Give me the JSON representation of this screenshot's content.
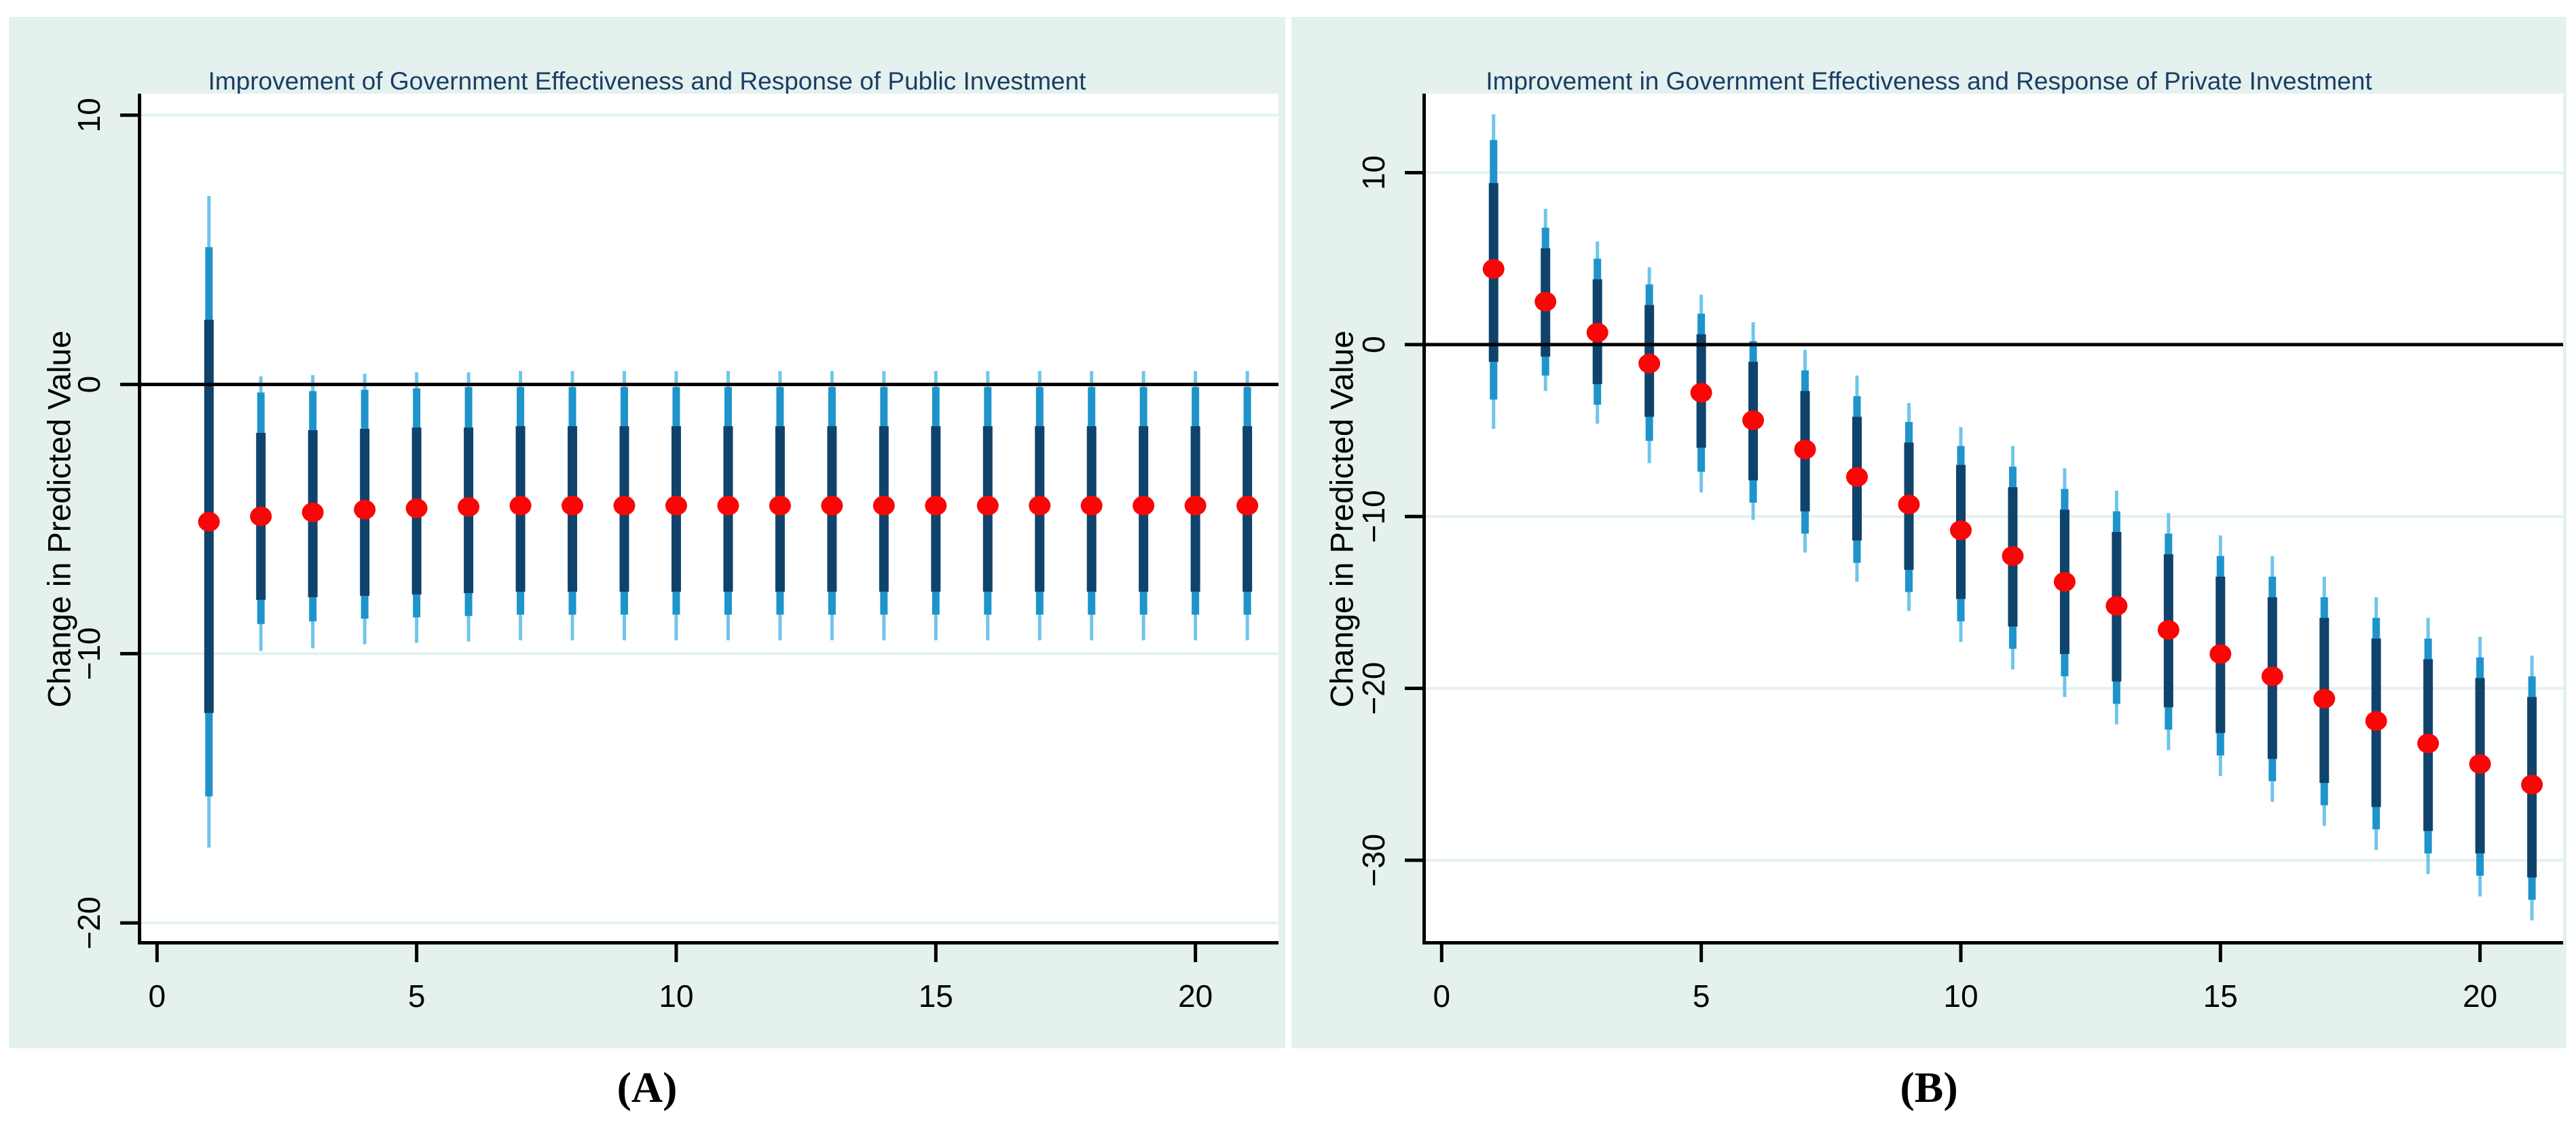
{
  "colors": {
    "page_bg": "#ffffff",
    "panel_bg": "#e4f1ef",
    "plot_bg": "#ffffff",
    "gridline": "#e3f1ee",
    "axis": "#000000",
    "zero_line": "#000000",
    "tick_text": "#000000",
    "title_text": "#1b3e63",
    "dot": "#f90606",
    "ci_inner": "#0f436b",
    "ci_mid": "#1e94ca",
    "ci_outer": "#6fc5eb"
  },
  "point_fields": [
    "x",
    "estimate",
    "ci_inner_lo",
    "ci_inner_hi",
    "ci_mid_lo",
    "ci_mid_hi",
    "ci_outer_lo",
    "ci_outer_hi"
  ],
  "chart_data": [
    {
      "type": "scatter",
      "panel": "A",
      "caption": "(A)",
      "title": "Improvement of Government Effectiveness and Response of Public Investment",
      "xlabel": "",
      "ylabel": "Change in Predicted Value",
      "xticks": [
        0,
        5,
        10,
        15,
        20
      ],
      "yticks": [
        10,
        0,
        -10,
        -20
      ],
      "xlim": [
        -0.37,
        21.6
      ],
      "ylim": [
        -20.8,
        10.8
      ],
      "grid": true,
      "zero_line": true,
      "legend": "none",
      "points": [
        [
          1,
          -5.1,
          -12.2,
          2.4,
          -15.3,
          5.1,
          -17.2,
          7.0
        ],
        [
          2,
          -4.9,
          -8.0,
          -1.8,
          -8.9,
          -0.3,
          -9.9,
          0.3
        ],
        [
          3,
          -4.75,
          -7.9,
          -1.7,
          -8.8,
          -0.25,
          -9.8,
          0.35
        ],
        [
          4,
          -4.65,
          -7.85,
          -1.65,
          -8.7,
          -0.2,
          -9.65,
          0.4
        ],
        [
          5,
          -4.6,
          -7.8,
          -1.6,
          -8.65,
          -0.15,
          -9.6,
          0.45
        ],
        [
          6,
          -4.55,
          -7.75,
          -1.6,
          -8.6,
          -0.1,
          -9.55,
          0.45
        ],
        [
          7,
          -4.5,
          -7.7,
          -1.55,
          -8.55,
          -0.1,
          -9.5,
          0.5
        ],
        [
          8,
          -4.5,
          -7.7,
          -1.55,
          -8.55,
          -0.1,
          -9.5,
          0.5
        ],
        [
          9,
          -4.5,
          -7.7,
          -1.55,
          -8.55,
          -0.1,
          -9.5,
          0.5
        ],
        [
          10,
          -4.5,
          -7.7,
          -1.55,
          -8.55,
          -0.1,
          -9.5,
          0.5
        ],
        [
          11,
          -4.5,
          -7.7,
          -1.55,
          -8.55,
          -0.1,
          -9.5,
          0.5
        ],
        [
          12,
          -4.5,
          -7.7,
          -1.55,
          -8.55,
          -0.1,
          -9.5,
          0.5
        ],
        [
          13,
          -4.5,
          -7.7,
          -1.55,
          -8.55,
          -0.1,
          -9.5,
          0.5
        ],
        [
          14,
          -4.5,
          -7.7,
          -1.55,
          -8.55,
          -0.1,
          -9.5,
          0.5
        ],
        [
          15,
          -4.5,
          -7.7,
          -1.55,
          -8.55,
          -0.1,
          -9.5,
          0.5
        ],
        [
          16,
          -4.5,
          -7.7,
          -1.55,
          -8.55,
          -0.1,
          -9.5,
          0.5
        ],
        [
          17,
          -4.5,
          -7.7,
          -1.55,
          -8.55,
          -0.1,
          -9.5,
          0.5
        ],
        [
          18,
          -4.5,
          -7.7,
          -1.55,
          -8.55,
          -0.1,
          -9.5,
          0.5
        ],
        [
          19,
          -4.5,
          -7.7,
          -1.55,
          -8.55,
          -0.1,
          -9.5,
          0.5
        ],
        [
          20,
          -4.5,
          -7.7,
          -1.55,
          -8.55,
          -0.1,
          -9.5,
          0.5
        ],
        [
          21,
          -4.5,
          -7.7,
          -1.55,
          -8.55,
          -0.1,
          -9.5,
          0.5
        ]
      ]
    },
    {
      "type": "scatter",
      "panel": "B",
      "caption": "(B)",
      "title": "Improvement in Government Effectiveness  and Response of Private Investment",
      "xlabel": "",
      "ylabel": "Change in Predicted Value",
      "xticks": [
        0,
        5,
        10,
        15,
        20
      ],
      "yticks": [
        10,
        0,
        -10,
        -20,
        -30
      ],
      "xlim": [
        -0.37,
        21.6
      ],
      "ylim": [
        -34.9,
        14.6
      ],
      "grid": true,
      "zero_line": true,
      "legend": "none",
      "points": [
        [
          1,
          4.4,
          -1.0,
          9.4,
          -3.2,
          11.9,
          -4.9,
          13.4
        ],
        [
          2,
          2.5,
          -0.7,
          5.6,
          -1.8,
          6.8,
          -2.7,
          7.9
        ],
        [
          3,
          0.7,
          -2.3,
          3.8,
          -3.5,
          5.0,
          -4.6,
          6.0
        ],
        [
          4,
          -1.1,
          -4.2,
          2.3,
          -5.6,
          3.5,
          -6.9,
          4.5
        ],
        [
          5,
          -2.8,
          -6.0,
          0.6,
          -7.4,
          1.8,
          -8.6,
          2.9
        ],
        [
          6,
          -4.4,
          -7.9,
          -1.0,
          -9.2,
          0.2,
          -10.2,
          1.3
        ],
        [
          7,
          -6.1,
          -9.7,
          -2.7,
          -11.0,
          -1.5,
          -12.1,
          -0.3
        ],
        [
          8,
          -7.7,
          -11.4,
          -4.2,
          -12.7,
          -3.0,
          -13.8,
          -1.8
        ],
        [
          9,
          -9.3,
          -13.1,
          -5.7,
          -14.4,
          -4.5,
          -15.5,
          -3.4
        ],
        [
          10,
          -10.8,
          -14.8,
          -7.0,
          -16.1,
          -5.9,
          -17.3,
          -4.8
        ],
        [
          11,
          -12.3,
          -16.4,
          -8.3,
          -17.7,
          -7.1,
          -18.9,
          -5.9
        ],
        [
          12,
          -13.8,
          -18.0,
          -9.6,
          -19.3,
          -8.4,
          -20.5,
          -7.2
        ],
        [
          13,
          -15.2,
          -19.6,
          -10.9,
          -20.9,
          -9.7,
          -22.1,
          -8.5
        ],
        [
          14,
          -16.6,
          -21.1,
          -12.2,
          -22.4,
          -11.0,
          -23.6,
          -9.8
        ],
        [
          15,
          -18.0,
          -22.6,
          -13.5,
          -23.9,
          -12.3,
          -25.1,
          -11.1
        ],
        [
          16,
          -19.3,
          -24.1,
          -14.7,
          -25.4,
          -13.5,
          -26.6,
          -12.3
        ],
        [
          17,
          -20.6,
          -25.5,
          -15.9,
          -26.8,
          -14.7,
          -28.0,
          -13.5
        ],
        [
          18,
          -21.9,
          -26.9,
          -17.1,
          -28.2,
          -15.9,
          -29.4,
          -14.7
        ],
        [
          19,
          -23.2,
          -28.3,
          -18.3,
          -29.6,
          -17.1,
          -30.8,
          -15.9
        ],
        [
          20,
          -24.4,
          -29.6,
          -19.4,
          -30.9,
          -18.2,
          -32.1,
          -17.0
        ],
        [
          21,
          -25.6,
          -31.0,
          -20.5,
          -32.3,
          -19.3,
          -33.5,
          -18.1
        ]
      ]
    }
  ]
}
